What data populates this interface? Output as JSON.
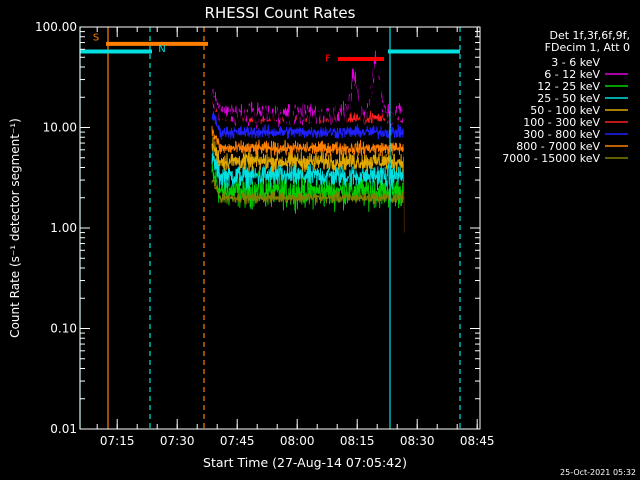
{
  "chart_data": {
    "type": "line",
    "title": "RHESSI Count Rates",
    "xlabel": "Start Time (27-Aug-14 07:05:42)",
    "ylabel": "Count Rate (s⁻¹ detector segment⁻¹)",
    "y_scale": "log",
    "ylim": [
      0.01,
      100.0
    ],
    "y_tick_labels": [
      "0.01",
      "0.10",
      "1.00",
      "10.00",
      "100.00"
    ],
    "x_unit": "minutes since 07:05:42",
    "xlim": [
      0,
      100
    ],
    "x_tick_labels": [
      "07:15",
      "07:30",
      "07:45",
      "08:00",
      "08:15",
      "08:30",
      "08:45"
    ],
    "x_tick_values": [
      9.3,
      24.3,
      39.3,
      54.3,
      69.3,
      84.3,
      99.3
    ],
    "legend_header": [
      "Det 1f,3f,6f,9f,",
      "FDecim 1, Att 0"
    ],
    "legend_position": "top-right",
    "data_start": 33.0,
    "data_end": 81.0,
    "series": [
      {
        "name": "3 - 6 keV",
        "color": "#000000",
        "level": 13.0,
        "noise": 0.22,
        "flare_peak": 42.0,
        "end_drop": 0.085
      },
      {
        "name": "6 - 12 keV",
        "color": "#e000e0",
        "level": 13.5,
        "noise": 0.2,
        "flare_peak": 45.0,
        "end_drop": null
      },
      {
        "name": "12 - 25 keV",
        "color": "#00d000",
        "level": 2.3,
        "noise": 0.3,
        "flare_peak": null,
        "end_drop": null
      },
      {
        "name": "25 - 50 keV",
        "color": "#00e0e0",
        "level": 3.3,
        "noise": 0.22,
        "flare_peak": null,
        "end_drop": null
      },
      {
        "name": "50 - 100 keV",
        "color": "#e0a800",
        "level": 4.6,
        "noise": 0.18,
        "flare_peak": null,
        "end_drop": null
      },
      {
        "name": "100 - 300 keV",
        "color": "#ff2020",
        "level": 12.5,
        "noise": 0.1,
        "flare_peak": null,
        "end_drop": null
      },
      {
        "name": "300 - 800 keV",
        "color": "#2020ff",
        "level": 9.0,
        "noise": 0.12,
        "flare_peak": null,
        "end_drop": null
      },
      {
        "name": "800 - 7000 keV",
        "color": "#ff8000",
        "level": 6.2,
        "noise": 0.13,
        "flare_peak": null,
        "end_drop": 0.9
      },
      {
        "name": "7000 - 15000 keV",
        "color": "#808000",
        "level": 2.0,
        "noise": 0.1,
        "flare_peak": null,
        "end_drop": null
      }
    ],
    "annotations": [
      {
        "label": "S",
        "color": "#ff8000",
        "x_start": 6.5,
        "x_end": 32.0,
        "y": 68.0,
        "label_y": 80.0
      },
      {
        "label": "N",
        "color": "#00e0e0",
        "x_start": 0.0,
        "x_end": 18.0,
        "y": 57.0,
        "label_y": 62.0
      },
      {
        "label": "",
        "color": "#00e0e0",
        "x_start": 77.0,
        "x_end": 95.0,
        "y": 57.0,
        "label_y": null
      },
      {
        "label": "F",
        "color": "#ff0000",
        "x_start": 64.5,
        "x_end": 76.0,
        "y": 48.0,
        "label_y": 50.0
      }
    ],
    "vlines": [
      {
        "x": 0.0,
        "color": "#00e0e0",
        "style": "solid"
      },
      {
        "x": 7.0,
        "color": "#ff8000",
        "style": "solid"
      },
      {
        "x": 17.5,
        "color": "#00e0e0",
        "style": "dashed"
      },
      {
        "x": 31.0,
        "color": "#ff8000",
        "style": "dashed"
      },
      {
        "x": 77.5,
        "color": "#00e0e0",
        "style": "solid"
      },
      {
        "x": 95.0,
        "color": "#00e0e0",
        "style": "dashed"
      }
    ]
  },
  "footer": {
    "timestamp": "25-Oct-2021 05:32"
  }
}
